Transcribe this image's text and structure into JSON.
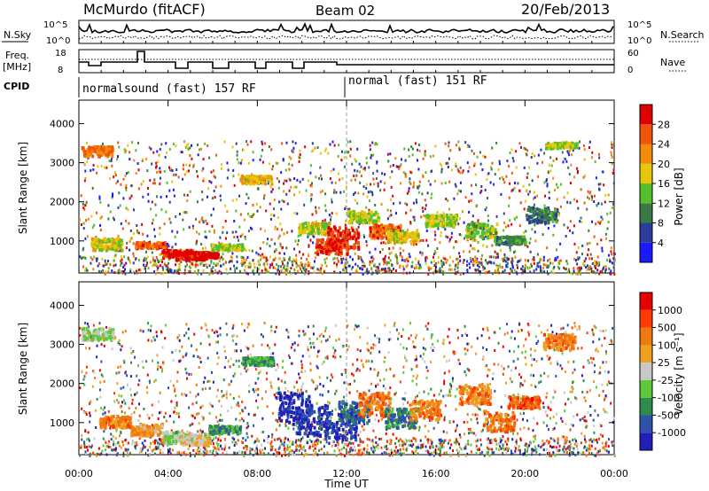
{
  "header": {
    "station": "McMurdo (fitACF)",
    "beam": "Beam 02",
    "date": "20/Feb/2013"
  },
  "aux_panels": {
    "nsky_label": "N.Sky",
    "nsky_ticks": [
      "10^5",
      "10^0"
    ],
    "nsearch_label": "N.Search",
    "nsearch_ticks": [
      "10^5",
      "10^0"
    ],
    "freq_label": "Freq.",
    "freq_unit": "[MHz]",
    "freq_ticks": [
      "18",
      "8"
    ],
    "nave_label": "Nave",
    "nave_ticks": [
      "60",
      "0"
    ],
    "cpid_label": "CPID",
    "cpid_segments": [
      "normalsound (fast) 157 RF",
      "normal (fast) 151 RF"
    ]
  },
  "chart_data": [
    {
      "type": "heatmap",
      "ylabel": "Slant Range [km]",
      "yticks": [
        "1000",
        "2000",
        "3000",
        "4000"
      ],
      "ylim": [
        180,
        4600
      ],
      "colorbar_label": "Power [dB]",
      "colorbar_ticks": [
        "4",
        "8",
        "12",
        "16",
        "20",
        "24",
        "28"
      ],
      "colors": [
        "#1a1aff",
        "#2b3d9c",
        "#3a7a44",
        "#54bf2a",
        "#e8c60a",
        "#f08c08",
        "#f0540c",
        "#e00000"
      ],
      "patches": [
        {
          "time": 0.8,
          "range": [
            3200,
            3450
          ],
          "level": 0.75
        },
        {
          "time": 1.2,
          "range": [
            800,
            1100
          ],
          "level": 0.55
        },
        {
          "time": 3.2,
          "range": [
            850,
            1000
          ],
          "level": 0.8
        },
        {
          "time": 4.4,
          "range": [
            600,
            800
          ],
          "level": 0.9
        },
        {
          "time": 5.0,
          "range": [
            550,
            750
          ],
          "level": 0.95
        },
        {
          "time": 5.5,
          "range": [
            600,
            750
          ],
          "level": 0.95
        },
        {
          "time": 6.6,
          "range": [
            800,
            950
          ],
          "level": 0.5
        },
        {
          "time": 7.9,
          "range": [
            2500,
            2700
          ],
          "level": 0.6
        },
        {
          "time": 10.5,
          "range": [
            1200,
            1500
          ],
          "level": 0.55
        },
        {
          "time": 11.3,
          "range": [
            700,
            1100
          ],
          "level": 0.85
        },
        {
          "time": 11.8,
          "range": [
            800,
            1400
          ],
          "level": 0.9
        },
        {
          "time": 12.7,
          "range": [
            1500,
            1800
          ],
          "level": 0.5
        },
        {
          "time": 13.7,
          "range": [
            1100,
            1450
          ],
          "level": 0.8
        },
        {
          "time": 14.5,
          "range": [
            1000,
            1300
          ],
          "level": 0.55
        },
        {
          "time": 16.2,
          "range": [
            1400,
            1700
          ],
          "level": 0.5
        },
        {
          "time": 18.0,
          "range": [
            1100,
            1500
          ],
          "level": 0.45
        },
        {
          "time": 19.3,
          "range": [
            950,
            1150
          ],
          "level": 0.35
        },
        {
          "time": 20.7,
          "range": [
            1500,
            1900
          ],
          "level": 0.3
        },
        {
          "time": 21.6,
          "range": [
            3400,
            3550
          ],
          "level": 0.5
        }
      ]
    },
    {
      "type": "heatmap",
      "ylabel": "Slant Range [km]",
      "yticks": [
        "1000",
        "2000",
        "3000",
        "4000"
      ],
      "ylim": [
        180,
        4600
      ],
      "xlabel": "Time UT",
      "xticks": [
        "00:00",
        "04:00",
        "08:00",
        "12:00",
        "16:00",
        "20:00",
        "00:00"
      ],
      "xlim": [
        0,
        24
      ],
      "colorbar_label": "Velocity [m s⁻¹]",
      "colorbar_ticks": [
        "1000",
        "500",
        "100",
        "25",
        "-25",
        "-100",
        "-500",
        "-1000"
      ],
      "colors": [
        "#2020b8",
        "#2c54a8",
        "#2e8c4a",
        "#5cc83a",
        "#c8c8c8",
        "#f0a020",
        "#f07810",
        "#ff3a00",
        "#e80000"
      ],
      "patches": [
        {
          "time": 0.8,
          "range": [
            3150,
            3450
          ],
          "level": 0.45
        },
        {
          "time": 1.6,
          "range": [
            900,
            1200
          ],
          "level": 0.7
        },
        {
          "time": 3.0,
          "range": [
            700,
            1000
          ],
          "level": 0.65
        },
        {
          "time": 4.4,
          "range": [
            500,
            800
          ],
          "level": 0.45
        },
        {
          "time": 5.2,
          "range": [
            450,
            750
          ],
          "level": 0.55
        },
        {
          "time": 6.5,
          "range": [
            750,
            950
          ],
          "level": 0.3
        },
        {
          "time": 8.0,
          "range": [
            2500,
            2700
          ],
          "level": 0.3
        },
        {
          "time": 9.6,
          "range": [
            1000,
            1800
          ],
          "level": 0.05
        },
        {
          "time": 10.4,
          "range": [
            700,
            1500
          ],
          "level": 0.1
        },
        {
          "time": 11.7,
          "range": [
            600,
            1300
          ],
          "level": 0.1
        },
        {
          "time": 12.3,
          "range": [
            1000,
            1600
          ],
          "level": 0.2
        },
        {
          "time": 13.2,
          "range": [
            1200,
            1800
          ],
          "level": 0.72
        },
        {
          "time": 14.4,
          "range": [
            900,
            1400
          ],
          "level": 0.25
        },
        {
          "time": 15.5,
          "range": [
            1100,
            1600
          ],
          "level": 0.7
        },
        {
          "time": 17.7,
          "range": [
            1500,
            2000
          ],
          "level": 0.7
        },
        {
          "time": 18.8,
          "range": [
            800,
            1300
          ],
          "level": 0.75
        },
        {
          "time": 19.9,
          "range": [
            1400,
            1700
          ],
          "level": 0.8
        },
        {
          "time": 21.5,
          "range": [
            2900,
            3300
          ],
          "level": 0.7
        }
      ]
    }
  ]
}
